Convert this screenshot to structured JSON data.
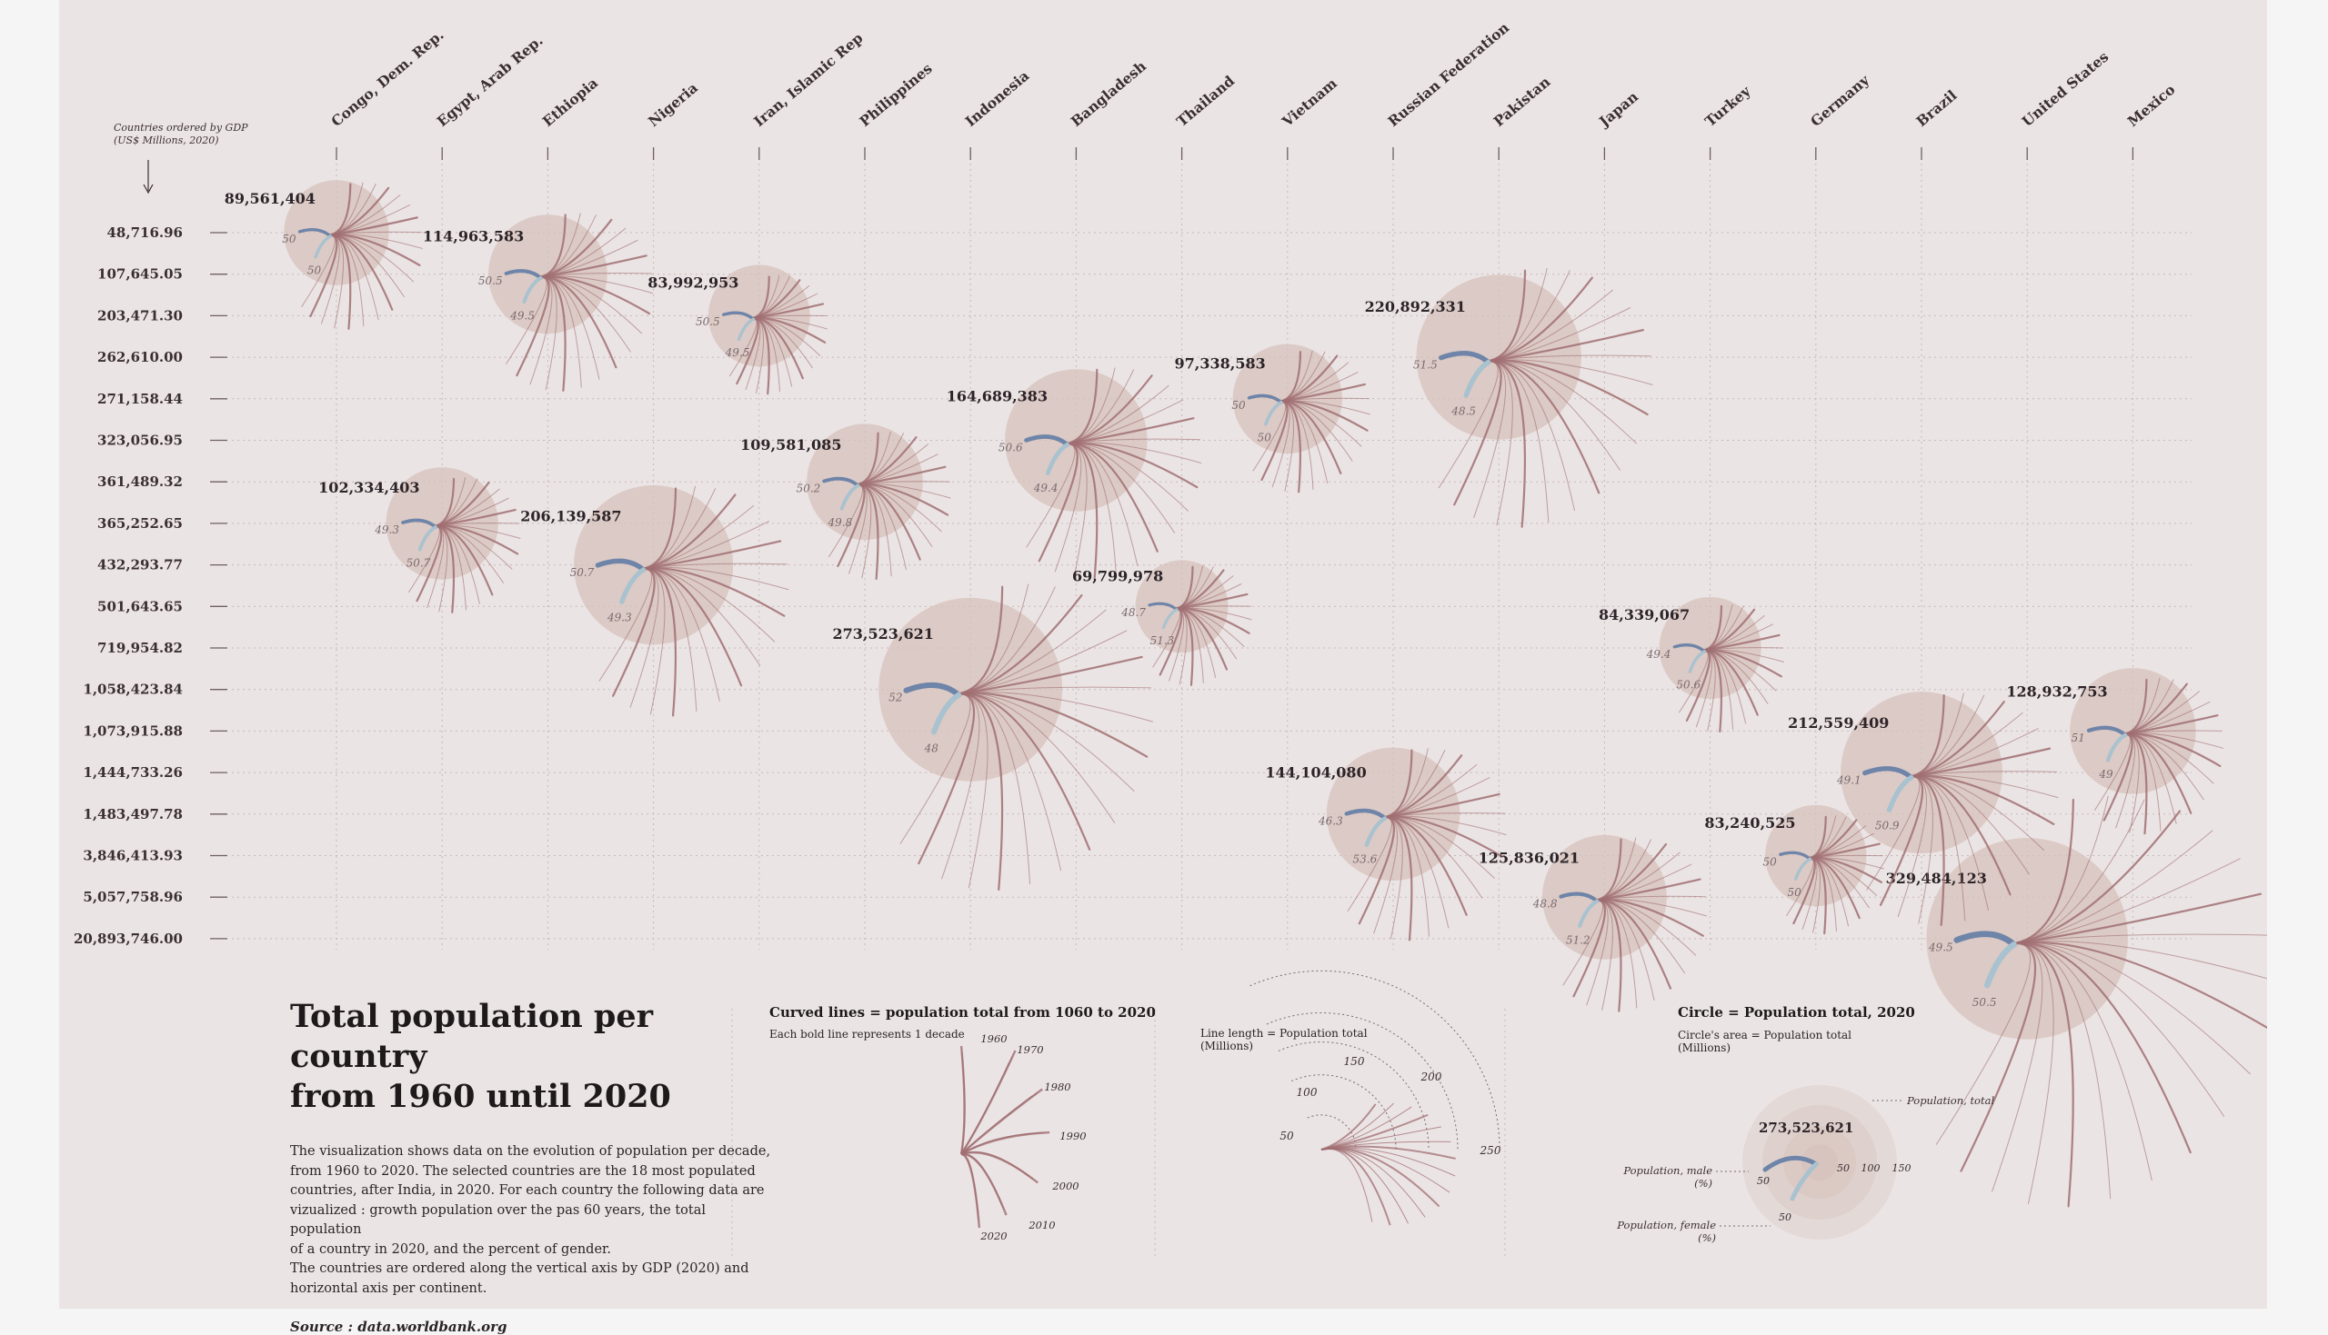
{
  "chart_data": {
    "type": "scatter",
    "title": "Total population per country\nfrom 1960 until 2020",
    "ylabel": "Countries ordered by GDP\n(US$ Millions, 2020)",
    "countries": [
      "Congo, Dem. Rep.",
      "Egypt, Arab Rep.",
      "Ethiopia",
      "Nigeria",
      "Iran, Islamic Rep",
      "Philippines",
      "Indonesia",
      "Bangladesh",
      "Thailand",
      "Vietnam",
      "Russian Federation",
      "Pakistan",
      "Japan",
      "Turkey",
      "Germany",
      "Brazil",
      "United States",
      "Mexico"
    ],
    "gdp_ticks": [
      "48,716.96",
      "107,645.05",
      "203,471.30",
      "262,610.00",
      "271,158.44",
      "323,056.95",
      "361,489.32",
      "365,252.65",
      "432,293.77",
      "501,643.65",
      "719,954.82",
      "1,058,423.84",
      "1,073,915.88",
      "1,444,733.26",
      "1,483,497.78",
      "3,846,413.93",
      "5,057,758.96",
      "20,893,746.00"
    ],
    "points": [
      {
        "country": "Congo, Dem. Rep.",
        "gdp": "48,716.96",
        "population": "89,561,404",
        "male": "50",
        "female": "50",
        "spread": 0.85
      },
      {
        "country": "Ethiopia",
        "gdp": "107,645.05",
        "population": "114,963,583",
        "male": "50.5",
        "female": "49.5",
        "spread": 0.95
      },
      {
        "country": "Iran, Islamic Rep",
        "gdp": "203,471.30",
        "population": "83,992,953",
        "male": "50.5",
        "female": "49.5",
        "spread": 0.7
      },
      {
        "country": "Thailand",
        "gdp": "501,643.65",
        "population": "69,799,978",
        "male": "48.7",
        "female": "51.3",
        "spread": 0.75
      },
      {
        "country": "Vietnam",
        "gdp": "271,158.44",
        "population": "97,338,583",
        "male": "50",
        "female": "50",
        "spread": 0.8
      },
      {
        "country": "Pakistan",
        "gdp": "262,610.00",
        "population": "220,892,331",
        "male": "51.5",
        "female": "48.5",
        "spread": 1.1
      },
      {
        "country": "Bangladesh",
        "gdp": "323,056.95",
        "population": "164,689,383",
        "male": "50.6",
        "female": "49.4",
        "spread": 1.0
      },
      {
        "country": "Philippines",
        "gdp": "361,489.32",
        "population": "109,581,085",
        "male": "50.2",
        "female": "49.8",
        "spread": 0.8
      },
      {
        "country": "Egypt, Arab Rep.",
        "gdp": "365,252.65",
        "population": "102,334,403",
        "male": "49.3",
        "female": "50.7",
        "spread": 0.75
      },
      {
        "country": "Nigeria",
        "gdp": "432,293.77",
        "population": "206,139,587",
        "male": "50.7",
        "female": "49.3",
        "spread": 1.0
      },
      {
        "country": "Turkey",
        "gdp": "719,954.82",
        "population": "84,339,067",
        "male": "49.4",
        "female": "50.6",
        "spread": 0.75
      },
      {
        "country": "Indonesia",
        "gdp": "1,058,423.84",
        "population": "273,523,621",
        "male": "52",
        "female": "48",
        "spread": 1.2
      },
      {
        "country": "Mexico",
        "gdp": "1,073,915.88",
        "population": "128,932,753",
        "male": "51",
        "female": "49",
        "spread": 0.8
      },
      {
        "country": "Russian Federation",
        "gdp": "1,483,497.78",
        "population": "144,104,080",
        "male": "46.3",
        "female": "53.6",
        "spread": 0.95
      },
      {
        "country": "Brazil",
        "gdp": "1,444,733.26",
        "population": "212,559,409",
        "male": "49.1",
        "female": "50.9",
        "spread": 1.0
      },
      {
        "country": "Germany",
        "gdp": "3,846,413.93",
        "population": "83,240,525",
        "male": "50",
        "female": "50",
        "spread": 0.7
      },
      {
        "country": "Japan",
        "gdp": "5,057,758.96",
        "population": "125,836,021",
        "male": "48.8",
        "female": "51.2",
        "spread": 0.9
      },
      {
        "country": "United States",
        "gdp": "20,893,746.00",
        "population": "329,484,123",
        "male": "49.5",
        "female": "50.5",
        "spread": 1.5
      }
    ]
  },
  "colors": {
    "background": "#ebe4e4",
    "circle": "#d6c1bb",
    "rays": "#a06e72",
    "male": "#6e84a8",
    "female": "#a9c2cf"
  },
  "text": {
    "description": "The visualization shows data on the evolution of population per decade,\nfrom 1960 to 2020.  The selected countries are the 18 most populated\ncountries, after India, in 2020. For each country the following data are\nvizualized : growth population over the pas 60 years, the total population\nof a country in 2020, and the percent of gender.\nThe countries are ordered along the vertical axis by GDP (2020) and\nhorizontal axis per continent.",
    "source": "Source : data.worldbank.org"
  },
  "legend": {
    "curved": {
      "heading": "Curved lines = population total from 1060 to 2020",
      "sub": "Each bold line represents 1 decade",
      "years": [
        "1960",
        "1970",
        "1980",
        "1990",
        "2000",
        "2010",
        "2020"
      ]
    },
    "length": {
      "heading": "Line length = Population total\n(Millions)",
      "ticks": [
        "50",
        "100",
        "150",
        "200",
        "250"
      ]
    },
    "circle": {
      "heading": "Circle = Population total, 2020",
      "sub": "Circle's area = Population total\n(Millions)",
      "example_value": "273,523,621",
      "rings": [
        "50",
        "100",
        "150"
      ],
      "male_label": "Population, male\n(%)",
      "female_label": "Population, female\n(%)",
      "total_label": "Population, total",
      "male_value": "50",
      "female_value": "50"
    }
  }
}
